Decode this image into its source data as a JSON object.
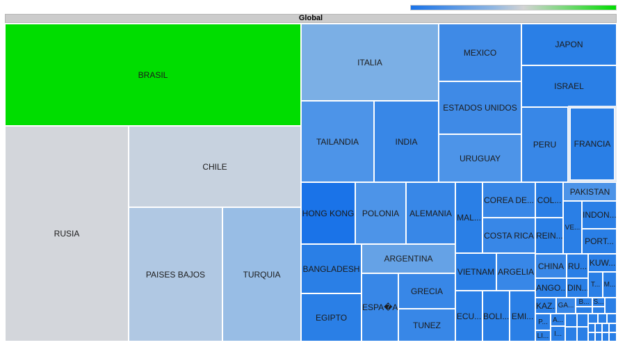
{
  "chart_data": {
    "type": "treemap",
    "title": "Global",
    "color_scale": {
      "low": "#1a73e8",
      "mid": "#d3d3d3",
      "high": "#00dd00"
    },
    "cells": [
      {
        "label": "BRASIL",
        "color": "#00dd00"
      },
      {
        "label": "RUSIA",
        "color": "#d3d6db"
      },
      {
        "label": "CHILE",
        "color": "#c7d2df"
      },
      {
        "label": "PAISES BAJOS",
        "color": "#b0c8e3"
      },
      {
        "label": "TURQUIA",
        "color": "#98bde5"
      },
      {
        "label": "ITALIA",
        "color": "#7bafe5"
      },
      {
        "label": "MEXICO",
        "color": "#3f8ae6"
      },
      {
        "label": "JAPON",
        "color": "#2a7fe6"
      },
      {
        "label": "ISRAEL",
        "color": "#2a7fe6"
      },
      {
        "label": "ESTADOS UNIDOS",
        "color": "#3f8ae6"
      },
      {
        "label": "URUGUAY",
        "color": "#4d94e8"
      },
      {
        "label": "TAILANDIA",
        "color": "#4d94e8"
      },
      {
        "label": "INDIA",
        "color": "#3887e7"
      },
      {
        "label": "PERU",
        "color": "#3887e7"
      },
      {
        "label": "FRANCIA",
        "color": "#2a7fe6"
      },
      {
        "label": "HONG KONG",
        "color": "#1a73e8"
      },
      {
        "label": "POLONIA",
        "color": "#4d94e8"
      },
      {
        "label": "ALEMANIA",
        "color": "#3887e7"
      },
      {
        "label": "MAL...",
        "color": "#2a7fe6"
      },
      {
        "label": "COREA DE...",
        "color": "#3887e7"
      },
      {
        "label": "COSTA RICA",
        "color": "#3887e7"
      },
      {
        "label": "COL...",
        "color": "#2a7fe6"
      },
      {
        "label": "REIN...",
        "color": "#2a7fe6"
      },
      {
        "label": "PAKISTAN",
        "color": "#4d94e8"
      },
      {
        "label": "VE...",
        "color": "#2a7fe6"
      },
      {
        "label": "INDON...",
        "color": "#2a7fe6"
      },
      {
        "label": "PORT...",
        "color": "#2a7fe6"
      },
      {
        "label": "BANGLADESH",
        "color": "#2a7fe6"
      },
      {
        "label": "ARGENTINA",
        "color": "#65a2e6"
      },
      {
        "label": "ESPA�A",
        "color": "#3887e7"
      },
      {
        "label": "GRECIA",
        "color": "#3887e7"
      },
      {
        "label": "TUNEZ",
        "color": "#3887e7"
      },
      {
        "label": "EGIPTO",
        "color": "#2a7fe6"
      },
      {
        "label": "VIETNAM",
        "color": "#2a7fe6"
      },
      {
        "label": "ARGELIA",
        "color": "#3887e7"
      },
      {
        "label": "ECU...",
        "color": "#2a7fe6"
      },
      {
        "label": "BOLI...",
        "color": "#2a7fe6"
      },
      {
        "label": "EMI...",
        "color": "#2a7fe6"
      },
      {
        "label": "CHINA",
        "color": "#3887e7"
      },
      {
        "label": "RU...",
        "color": "#2a7fe6"
      },
      {
        "label": "KUW...",
        "color": "#2a7fe6"
      },
      {
        "label": "ANGO...",
        "color": "#2a7fe6"
      },
      {
        "label": "DIN...",
        "color": "#2a7fe6"
      },
      {
        "label": "T...",
        "color": "#2a7fe6"
      },
      {
        "label": "M...",
        "color": "#2a7fe6"
      },
      {
        "label": "KAZ...",
        "color": "#2a7fe6"
      },
      {
        "label": "GA...",
        "color": "#3887e7"
      },
      {
        "label": "B...",
        "color": "#2a7fe6"
      },
      {
        "label": "S...",
        "color": "#2a7fe6"
      },
      {
        "label": "P...",
        "color": "#2a7fe6"
      },
      {
        "label": "A...",
        "color": "#2a7fe6"
      },
      {
        "label": "LI...",
        "color": "#2a7fe6"
      },
      {
        "label": "I...",
        "color": "#2a7fe6"
      }
    ]
  }
}
